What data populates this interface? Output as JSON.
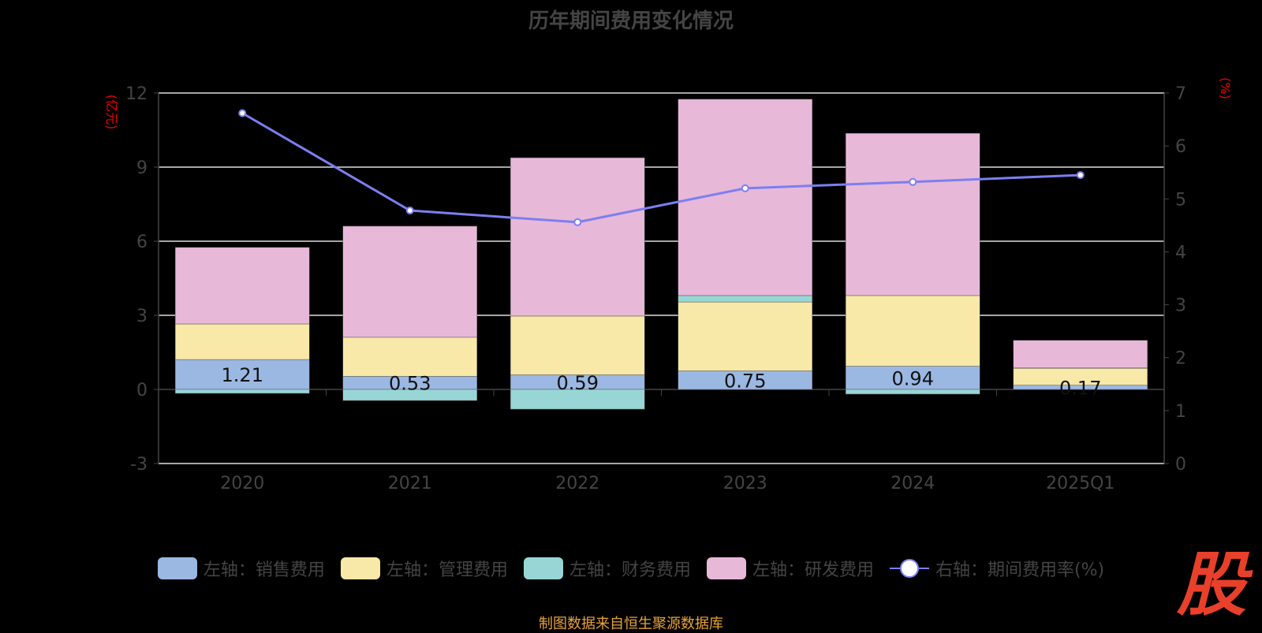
{
  "chart_data": {
    "type": "bar",
    "title": "历年期间费用变化情况",
    "categories": [
      "2020",
      "2021",
      "2022",
      "2023",
      "2024",
      "2025Q1"
    ],
    "left_axis": {
      "label": "(亿元)",
      "ylim": [
        -3,
        12
      ],
      "ticks": [
        -3,
        0,
        3,
        6,
        9,
        12
      ]
    },
    "right_axis": {
      "label": "(%)",
      "ylim": [
        0,
        7
      ],
      "ticks": [
        0,
        1,
        2,
        3,
        4,
        5,
        6,
        7
      ]
    },
    "series": [
      {
        "name": "左轴：销售费用",
        "color": "#9bb8e3",
        "stack": true,
        "values": [
          1.21,
          0.53,
          0.59,
          0.75,
          0.94,
          0.17
        ],
        "labels": [
          "1.21",
          "0.53",
          "0.59",
          "0.75",
          "0.94",
          "0.17"
        ]
      },
      {
        "name": "左轴：管理费用",
        "color": "#f8e9a8",
        "stack": true,
        "values": [
          1.44,
          1.58,
          2.38,
          2.79,
          2.86,
          0.69
        ]
      },
      {
        "name": "左轴：财务费用",
        "color": "#98d6d6",
        "stack": true,
        "values": [
          -0.16,
          -0.45,
          -0.8,
          0.26,
          -0.19,
          0.01
        ]
      },
      {
        "name": "左轴：研发费用",
        "color": "#e8b8d9",
        "stack": true,
        "values": [
          3.1,
          4.5,
          6.41,
          7.95,
          6.57,
          1.12
        ]
      },
      {
        "name": "右轴：期间费用率(%)",
        "color": "#7b7ff0",
        "type": "line",
        "axis": "right",
        "values": [
          6.62,
          4.78,
          4.56,
          5.2,
          5.32,
          5.45
        ]
      }
    ],
    "grid": true,
    "legend_position": "bottom"
  },
  "source": "制图数据来自恒生聚源数据库",
  "logo": "股"
}
